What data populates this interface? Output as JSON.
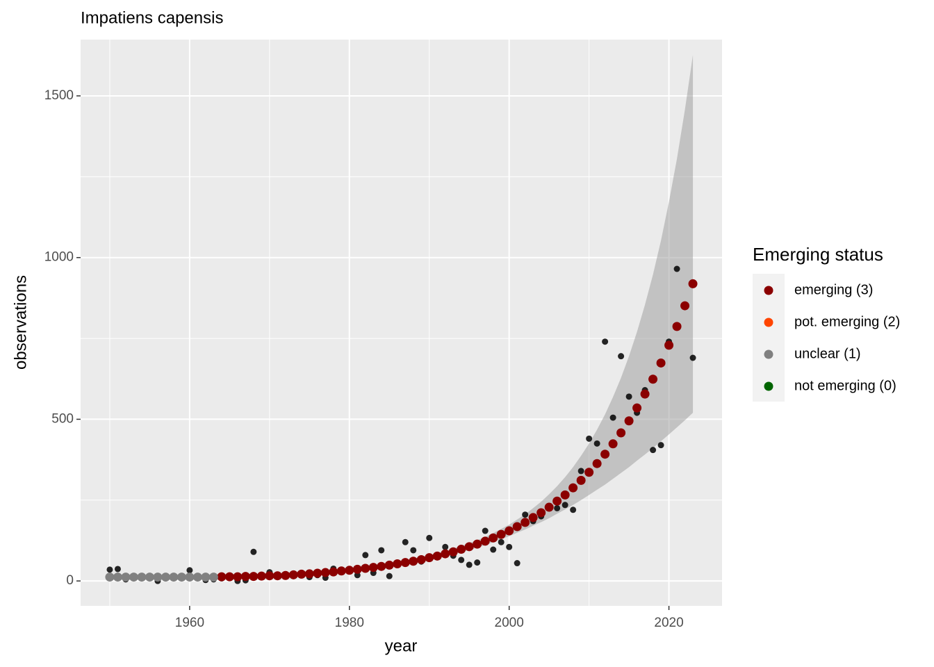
{
  "chart_data": {
    "type": "scatter",
    "title": "Impatiens capensis",
    "x_label": "year",
    "y_label": "observations",
    "legend_title": "Emerging status",
    "xlim": [
      1946.35,
      2026.65
    ],
    "ylim": [
      -77,
      1674
    ],
    "xticks": [
      1960,
      1980,
      2000,
      2020
    ],
    "yticks": [
      0,
      500,
      1000,
      1500
    ],
    "grid": true,
    "x": [
      1950,
      1951,
      1952,
      1953,
      1954,
      1955,
      1956,
      1957,
      1958,
      1959,
      1960,
      1961,
      1962,
      1963,
      1964,
      1965,
      1966,
      1967,
      1968,
      1969,
      1970,
      1971,
      1972,
      1973,
      1974,
      1975,
      1976,
      1977,
      1978,
      1979,
      1980,
      1981,
      1982,
      1983,
      1984,
      1985,
      1986,
      1987,
      1988,
      1989,
      1990,
      1991,
      1992,
      1993,
      1994,
      1995,
      1996,
      1997,
      1998,
      1999,
      2000,
      2001,
      2002,
      2003,
      2004,
      2005,
      2006,
      2007,
      2008,
      2009,
      2010,
      2011,
      2012,
      2013,
      2014,
      2015,
      2016,
      2017,
      2018,
      2019,
      2020,
      2021,
      2022,
      2023
    ],
    "observed": {
      "color": "#000000",
      "values": [
        35,
        37,
        5,
        10,
        12,
        10,
        0,
        8,
        10,
        10,
        33,
        10,
        3,
        5,
        8,
        15,
        0,
        2,
        90,
        15,
        27,
        18,
        20,
        18,
        20,
        12,
        18,
        10,
        38,
        33,
        30,
        18,
        80,
        25,
        95,
        15,
        55,
        120,
        95,
        60,
        133,
        75,
        105,
        78,
        65,
        50,
        57,
        155,
        97,
        120,
        105,
        55,
        205,
        185,
        200,
        225,
        225,
        235,
        220,
        340,
        440,
        425,
        740,
        505,
        695,
        570,
        520,
        590,
        405,
        420,
        740,
        965,
        850,
        690
      ]
    },
    "band": {
      "color": "#999999",
      "lower": [
        7,
        7,
        8,
        8,
        8,
        8,
        8,
        8,
        8,
        8,
        8,
        9,
        9,
        9,
        10,
        10,
        10,
        11,
        11,
        12,
        13,
        13,
        14,
        16,
        17,
        18,
        20,
        22,
        24,
        27,
        29,
        31,
        34,
        37,
        40,
        43,
        47,
        51,
        55,
        59,
        65,
        69,
        76,
        81,
        89,
        96,
        103,
        111,
        120,
        129,
        138,
        149,
        159,
        171,
        182,
        194,
        208,
        221,
        235,
        250,
        266,
        282,
        298,
        316,
        334,
        352,
        372,
        391,
        411,
        432,
        453,
        475,
        497,
        520
      ],
      "upper": [
        20,
        20,
        19,
        19,
        19,
        18,
        18,
        18,
        17,
        17,
        17,
        17,
        16,
        16,
        17,
        17,
        17,
        18,
        18,
        19,
        20,
        20,
        21,
        23,
        25,
        26,
        29,
        31,
        33,
        36,
        38,
        41,
        45,
        48,
        51,
        55,
        60,
        64,
        68,
        73,
        80,
        85,
        93,
        100,
        108,
        117,
        126,
        136,
        148,
        161,
        174,
        190,
        206,
        225,
        245,
        268,
        293,
        321,
        352,
        387,
        425,
        468,
        515,
        569,
        628,
        695,
        770,
        854,
        947,
        1052,
        1172,
        1305,
        1457,
        1626
      ]
    },
    "series": [
      {
        "name": "emerging (3)",
        "color": "#8b0000",
        "values": [
          null,
          null,
          null,
          null,
          null,
          null,
          null,
          null,
          null,
          null,
          null,
          null,
          null,
          null,
          13,
          13,
          13,
          14,
          14,
          15,
          16,
          16,
          17,
          19,
          21,
          22,
          24,
          26,
          28,
          31,
          33,
          36,
          39,
          42,
          45,
          49,
          53,
          57,
          61,
          66,
          72,
          77,
          84,
          90,
          98,
          106,
          114,
          123,
          133,
          144,
          155,
          168,
          181,
          196,
          211,
          228,
          247,
          266,
          288,
          311,
          336,
          363,
          392,
          424,
          458,
          495,
          535,
          578,
          624,
          674,
          729,
          787,
          851,
          919
        ]
      },
      {
        "name": "pot. emerging (2)",
        "color": "#ff4500",
        "values": [
          null,
          null,
          null,
          null,
          null,
          null,
          null,
          null,
          null,
          null,
          null,
          null,
          null,
          null,
          null,
          null,
          null,
          null,
          null,
          null,
          null,
          null,
          null,
          null,
          null,
          null,
          null,
          null,
          null,
          null,
          null,
          null,
          null,
          null,
          null,
          null,
          null,
          null,
          null,
          null,
          null,
          null,
          null,
          null,
          null,
          null,
          null,
          null,
          null,
          null,
          null,
          null,
          null,
          null,
          null,
          null,
          null,
          null,
          null,
          null,
          null,
          null,
          null,
          null,
          null,
          null,
          null,
          null,
          null,
          null,
          null,
          null,
          null,
          null
        ]
      },
      {
        "name": "unclear (1)",
        "color": "#808080",
        "values": [
          12,
          12,
          12,
          12,
          12,
          12,
          12,
          12,
          12,
          12,
          12,
          12,
          12,
          12,
          null,
          null,
          null,
          null,
          null,
          null,
          null,
          null,
          null,
          null,
          null,
          null,
          null,
          null,
          null,
          null,
          null,
          null,
          null,
          null,
          null,
          null,
          null,
          null,
          null,
          null,
          null,
          null,
          null,
          null,
          null,
          null,
          null,
          null,
          null,
          null,
          null,
          null,
          null,
          null,
          null,
          null,
          null,
          null,
          null,
          null,
          null,
          null,
          null,
          null,
          null,
          null,
          null,
          null,
          null,
          null,
          null,
          null,
          null,
          null
        ]
      },
      {
        "name": "not emerging (0)",
        "color": "#006400",
        "values": [
          null,
          null,
          null,
          null,
          null,
          null,
          null,
          null,
          null,
          null,
          null,
          null,
          null,
          null,
          null,
          null,
          null,
          null,
          null,
          null,
          null,
          null,
          null,
          null,
          null,
          null,
          null,
          null,
          null,
          null,
          null,
          null,
          null,
          null,
          null,
          null,
          null,
          null,
          null,
          null,
          null,
          null,
          null,
          null,
          null,
          null,
          null,
          null,
          null,
          null,
          null,
          null,
          null,
          null,
          null,
          null,
          null,
          null,
          null,
          null,
          null,
          null,
          null,
          null,
          null,
          null,
          null,
          null,
          null,
          null,
          null,
          null,
          null,
          null
        ]
      }
    ]
  }
}
